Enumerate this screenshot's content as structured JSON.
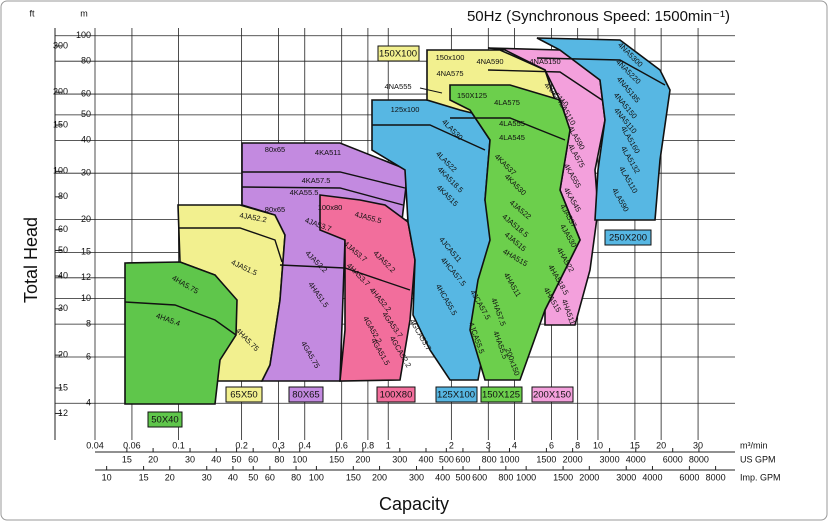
{
  "chart_data": {
    "type": "selection-chart",
    "title": "50Hz (Synchronous Speed: 1500min⁻¹)",
    "xlabel": "Capacity",
    "ylabel": "Total Head",
    "y_unit": "m",
    "y2_unit": "ft",
    "x_unit": "m³/min",
    "x2_unit": "US GPM",
    "x3_unit": "Imp. GPM",
    "log_scale": true,
    "grid": true,
    "xlim": [
      0.04,
      45
    ],
    "xticks": [
      0.04,
      0.06,
      0.1,
      0.2,
      0.3,
      0.4,
      0.6,
      0.8,
      1,
      2,
      3,
      4,
      6,
      8,
      10,
      15,
      20,
      30
    ],
    "x2lim": [
      10.57,
      11888
    ],
    "x2ticks": [
      15,
      20,
      30,
      40,
      50,
      60,
      80,
      100,
      150,
      200,
      300,
      400,
      500,
      600,
      800,
      1000,
      1500,
      2000,
      3000,
      4000,
      6000,
      8000
    ],
    "x3lim": [
      8.8,
      9899
    ],
    "x3ticks": [
      10,
      15,
      20,
      30,
      40,
      50,
      60,
      80,
      100,
      150,
      200,
      300,
      400,
      500,
      600,
      800,
      1000,
      1500,
      2000,
      3000,
      4000,
      6000,
      8000
    ],
    "ylim": [
      2.9,
      107
    ],
    "yticks": [
      4,
      6,
      8,
      10,
      12,
      15,
      20,
      30,
      40,
      50,
      60,
      80,
      100
    ],
    "y2lim": [
      9.51,
      351
    ],
    "y2ticks": [
      12,
      15,
      20,
      30,
      40,
      50,
      60,
      80,
      100,
      150,
      200,
      300
    ],
    "groups": [
      {
        "name": "50X40",
        "color": "#5fc64b"
      },
      {
        "name": "65X50",
        "color": "#f2f08f"
      },
      {
        "name": "80X65",
        "color": "#c38ae0"
      },
      {
        "name": "100X80",
        "color": "#f26e9c"
      },
      {
        "name": "125X100",
        "color": "#57b7e3"
      },
      {
        "name": "150X125",
        "color": "#6ccf4c"
      },
      {
        "name": "200X150",
        "color": "#f3a0dc"
      },
      {
        "name": "250X200",
        "color": "#57b7e3"
      },
      {
        "name": "150X100",
        "color": "#f2f08f"
      }
    ],
    "region_labels": [
      "4HA5.75",
      "4HA5.4",
      "4JA52.2",
      "4JA51.5",
      "4HA5.75",
      "80x65",
      "4JA53.7",
      "4JA52.2",
      "4HA51.5",
      "4GA5.75",
      "80x65",
      "4KA511",
      "4KA57.5",
      "4KA55.5",
      "100x80",
      "4JA55.5",
      "4JA53.7",
      "4JA52.2",
      "4HA53.7",
      "4HA52.2",
      "4GA53.7",
      "4GA52.2",
      "4GA51.5",
      "125x100",
      "4LA530",
      "4LA522",
      "4KA518.5",
      "4KA515",
      "4JCA511",
      "4HCA57.5",
      "4HCA55.5",
      "4JCA57.5",
      "4JCA55.5",
      "4GCA53.7",
      "4GCA52.2",
      "150x100",
      "4NA590",
      "4NA575",
      "4NA555",
      "150X125",
      "4LA575",
      "4LA555",
      "4LA545",
      "4KA537",
      "4KA530",
      "4JA522",
      "4JA518.5",
      "4JA515",
      "4HA515",
      "4HA511",
      "4HA57.5",
      "4HA55.5",
      "200x150",
      "4NA5150",
      "4NA5110",
      "4LA5110",
      "4LA590",
      "4LA575",
      "4KA555",
      "4KA545",
      "4JA537",
      "4JA530",
      "4HA522",
      "4HA518.5",
      "4HA515",
      "4HA511",
      "4NA5300",
      "4NA5220",
      "4NA5185",
      "4NA5150",
      "4NA5110",
      "4LA5160",
      "4LA5132",
      "4LA5110",
      "4LA590"
    ]
  }
}
